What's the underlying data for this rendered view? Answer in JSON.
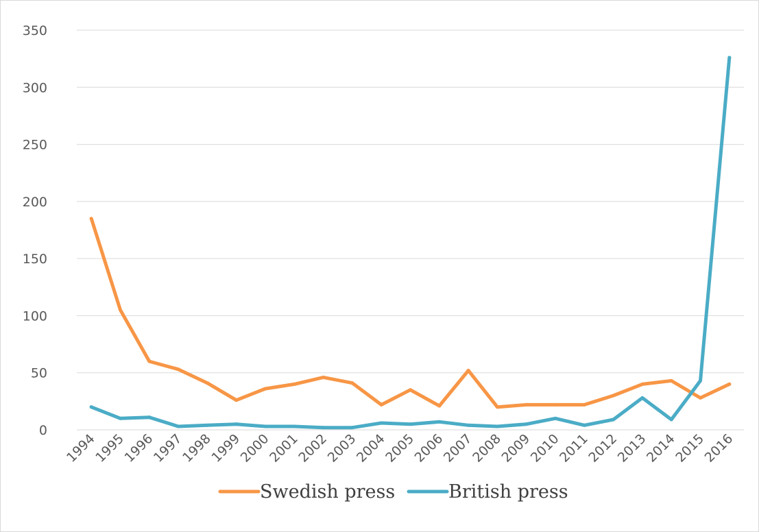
{
  "chart_data": {
    "type": "line",
    "title": "",
    "xlabel": "",
    "ylabel": "",
    "x": [
      "1994",
      "1995",
      "1996",
      "1997",
      "1998",
      "1999",
      "2000",
      "2001",
      "2002",
      "2003",
      "2004",
      "2005",
      "2006",
      "2007",
      "2008",
      "2009",
      "2010",
      "2011",
      "2012",
      "2013",
      "2014",
      "2015",
      "2016"
    ],
    "ylim": [
      0,
      350
    ],
    "yticks": [
      "0",
      "50",
      "100",
      "150",
      "200",
      "250",
      "300",
      "350"
    ],
    "grid": true,
    "legend_position": "bottom",
    "series": [
      {
        "name": "Swedish press",
        "color": "#f79646",
        "values": [
          185,
          105,
          60,
          53,
          41,
          26,
          36,
          40,
          46,
          41,
          22,
          35,
          21,
          52,
          20,
          22,
          22,
          22,
          30,
          40,
          43,
          28,
          40
        ]
      },
      {
        "name": "British press",
        "color": "#4bacc6",
        "values": [
          20,
          10,
          11,
          3,
          4,
          5,
          3,
          3,
          2,
          2,
          6,
          5,
          7,
          4,
          3,
          5,
          10,
          4,
          9,
          28,
          9,
          43,
          326
        ]
      }
    ]
  }
}
